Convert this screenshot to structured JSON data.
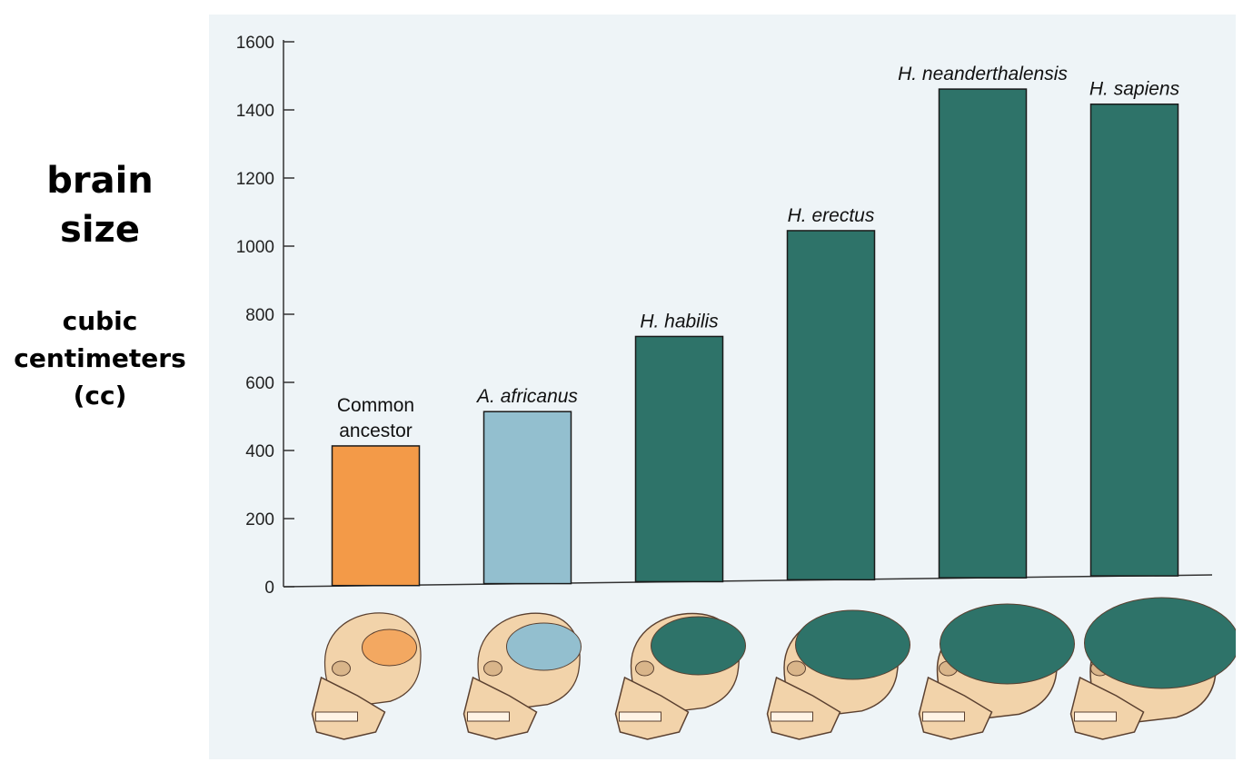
{
  "side_label": {
    "title_line1": "brain",
    "title_line2": "size",
    "unit_line1": "cubic",
    "unit_line2": "centimeters",
    "unit_line3": "(cc)"
  },
  "chart_data": {
    "type": "bar",
    "categories": [
      "Common ancestor",
      "A. africanus",
      "H. habilis",
      "H. erectus",
      "H. neanderthalensis",
      "H. sapiens"
    ],
    "category_label_lines": [
      [
        "Common",
        "ancestor"
      ],
      [
        "A. africanus"
      ],
      [
        "H. habilis"
      ],
      [
        "H. erectus"
      ],
      [
        "H. neanderthalensis"
      ],
      [
        "H. sapiens"
      ]
    ],
    "category_label_italic": [
      false,
      true,
      true,
      true,
      true,
      true
    ],
    "values": [
      410,
      505,
      720,
      1025,
      1435,
      1385
    ],
    "colors": [
      "#f39a48",
      "#93bfcf",
      "#2e7369",
      "#2e7369",
      "#2e7369",
      "#2e7369"
    ],
    "ylim": [
      0,
      1600
    ],
    "yticks": [
      0,
      200,
      400,
      600,
      800,
      1000,
      1200,
      1400,
      1600
    ],
    "title": "",
    "xlabel": "",
    "ylabel": "",
    "grid": false,
    "legend": "none",
    "skull_icons": [
      "skull-common-ancestor-icon",
      "skull-a-africanus-icon",
      "skull-h-habilis-icon",
      "skull-h-erectus-icon",
      "skull-h-neanderthalensis-icon",
      "skull-h-sapiens-icon"
    ]
  }
}
